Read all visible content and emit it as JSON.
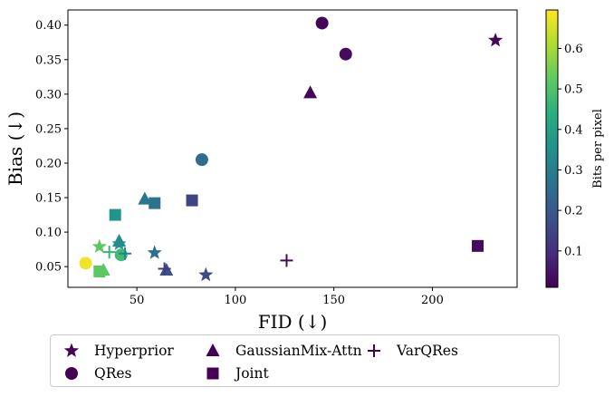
{
  "chart_data": {
    "type": "scatter",
    "xlabel": "FID (↓)",
    "ylabel": "Bias (↓)",
    "xlim": [
      15,
      243
    ],
    "ylim": [
      0.02,
      0.422
    ],
    "xticks": [
      50,
      100,
      150,
      200
    ],
    "yticks": [
      0.05,
      0.1,
      0.15,
      0.2,
      0.25,
      0.3,
      0.35,
      0.4
    ],
    "grid": false,
    "legend_position": "bottom",
    "colorbar": {
      "label": "Bits per pixel",
      "range": [
        0.01,
        0.695
      ],
      "ticks": [
        0.1,
        0.2,
        0.3,
        0.4,
        0.5,
        0.6
      ],
      "colormap": "viridis"
    },
    "series": [
      {
        "name": "Hyperprior",
        "marker": "star",
        "points": [
          {
            "x": 232,
            "y": 0.378,
            "bpp": 0.02
          },
          {
            "x": 85,
            "y": 0.038,
            "bpp": 0.16
          },
          {
            "x": 59,
            "y": 0.07,
            "bpp": 0.26
          },
          {
            "x": 41,
            "y": 0.083,
            "bpp": 0.36
          },
          {
            "x": 31,
            "y": 0.079,
            "bpp": 0.52
          }
        ]
      },
      {
        "name": "QRes",
        "marker": "circle",
        "points": [
          {
            "x": 144,
            "y": 0.403,
            "bpp": 0.02
          },
          {
            "x": 156,
            "y": 0.358,
            "bpp": 0.03
          },
          {
            "x": 83,
            "y": 0.205,
            "bpp": 0.25
          },
          {
            "x": 42,
            "y": 0.067,
            "bpp": 0.48
          },
          {
            "x": 24,
            "y": 0.055,
            "bpp": 0.68
          }
        ]
      },
      {
        "name": "GaussianMix-Attn",
        "marker": "triangle",
        "points": [
          {
            "x": 138,
            "y": 0.302,
            "bpp": 0.02
          },
          {
            "x": 65,
            "y": 0.045,
            "bpp": 0.18
          },
          {
            "x": 54,
            "y": 0.148,
            "bpp": 0.28
          },
          {
            "x": 41,
            "y": 0.087,
            "bpp": 0.34
          },
          {
            "x": 33,
            "y": 0.045,
            "bpp": 0.52
          }
        ]
      },
      {
        "name": "Joint",
        "marker": "square",
        "points": [
          {
            "x": 223,
            "y": 0.08,
            "bpp": 0.03
          },
          {
            "x": 78,
            "y": 0.146,
            "bpp": 0.15
          },
          {
            "x": 59,
            "y": 0.142,
            "bpp": 0.27
          },
          {
            "x": 39,
            "y": 0.125,
            "bpp": 0.36
          },
          {
            "x": 31,
            "y": 0.043,
            "bpp": 0.52
          }
        ]
      },
      {
        "name": "VarQRes",
        "marker": "plus",
        "points": [
          {
            "x": 126,
            "y": 0.059,
            "bpp": 0.03
          },
          {
            "x": 64,
            "y": 0.047,
            "bpp": 0.12
          },
          {
            "x": 44,
            "y": 0.069,
            "bpp": 0.32
          },
          {
            "x": 36,
            "y": 0.071,
            "bpp": 0.46
          }
        ]
      }
    ]
  }
}
